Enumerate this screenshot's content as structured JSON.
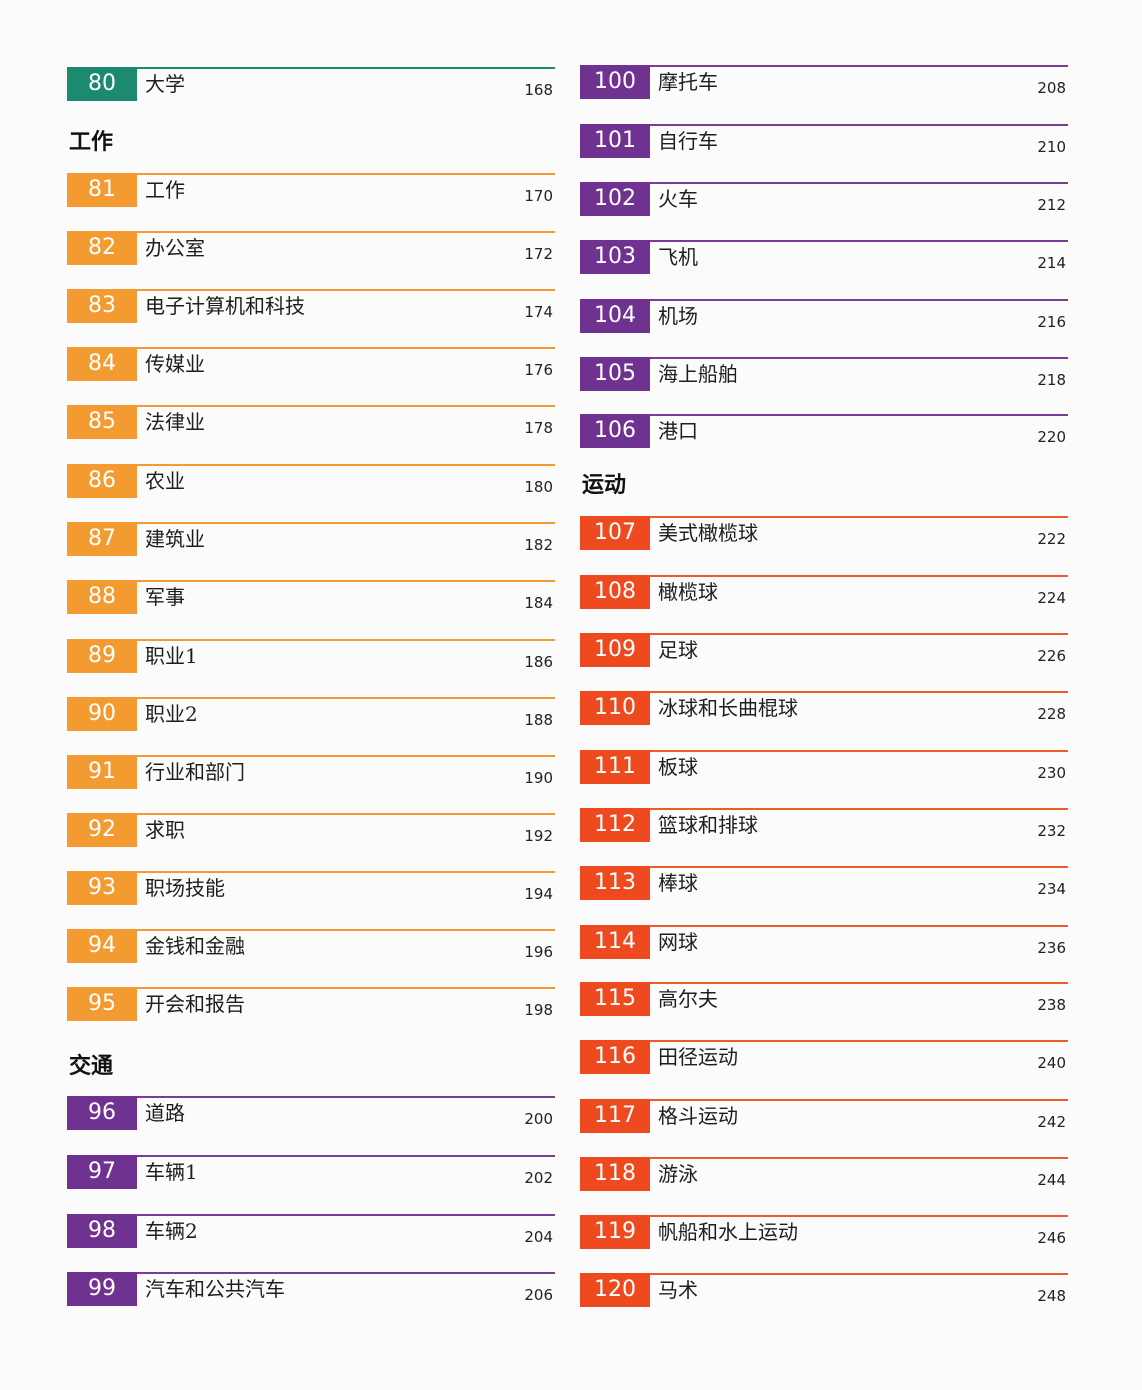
{
  "colors": {
    "green": "#1b8a6e",
    "orange": "#f39b30",
    "purple": "#6f3290",
    "red": "#ef4a1f"
  },
  "left": {
    "entry_80": {
      "num": "80",
      "title": "大学",
      "page": "168"
    },
    "section_work": "工作",
    "work": [
      {
        "num": "81",
        "title": "工作",
        "page": "170"
      },
      {
        "num": "82",
        "title": "办公室",
        "page": "172"
      },
      {
        "num": "83",
        "title": "电子计算机和科技",
        "page": "174"
      },
      {
        "num": "84",
        "title": "传媒业",
        "page": "176"
      },
      {
        "num": "85",
        "title": "法律业",
        "page": "178"
      },
      {
        "num": "86",
        "title": "农业",
        "page": "180"
      },
      {
        "num": "87",
        "title": "建筑业",
        "page": "182"
      },
      {
        "num": "88",
        "title": "军事",
        "page": "184"
      },
      {
        "num": "89",
        "title": "职业1",
        "page": "186"
      },
      {
        "num": "90",
        "title": "职业2",
        "page": "188"
      },
      {
        "num": "91",
        "title": "行业和部门",
        "page": "190"
      },
      {
        "num": "92",
        "title": "求职",
        "page": "192"
      },
      {
        "num": "93",
        "title": "职场技能",
        "page": "194"
      },
      {
        "num": "94",
        "title": "金钱和金融",
        "page": "196"
      },
      {
        "num": "95",
        "title": "开会和报告",
        "page": "198"
      }
    ],
    "section_transport": "交通",
    "transport": [
      {
        "num": "96",
        "title": "道路",
        "page": "200"
      },
      {
        "num": "97",
        "title": "车辆1",
        "page": "202"
      },
      {
        "num": "98",
        "title": "车辆2",
        "page": "204"
      },
      {
        "num": "99",
        "title": "汽车和公共汽车",
        "page": "206"
      }
    ]
  },
  "right": {
    "transport": [
      {
        "num": "100",
        "title": "摩托车",
        "page": "208"
      },
      {
        "num": "101",
        "title": "自行车",
        "page": "210"
      },
      {
        "num": "102",
        "title": "火车",
        "page": "212"
      },
      {
        "num": "103",
        "title": "飞机",
        "page": "214"
      },
      {
        "num": "104",
        "title": "机场",
        "page": "216"
      },
      {
        "num": "105",
        "title": "海上船舶",
        "page": "218"
      },
      {
        "num": "106",
        "title": "港口",
        "page": "220"
      }
    ],
    "section_sports": "运动",
    "sports": [
      {
        "num": "107",
        "title": "美式橄榄球",
        "page": "222"
      },
      {
        "num": "108",
        "title": "橄榄球",
        "page": "224"
      },
      {
        "num": "109",
        "title": "足球",
        "page": "226"
      },
      {
        "num": "110",
        "title": "冰球和长曲棍球",
        "page": "228"
      },
      {
        "num": "111",
        "title": "板球",
        "page": "230"
      },
      {
        "num": "112",
        "title": "篮球和排球",
        "page": "232"
      },
      {
        "num": "113",
        "title": "棒球",
        "page": "234"
      },
      {
        "num": "114",
        "title": "网球",
        "page": "236"
      },
      {
        "num": "115",
        "title": "高尔夫",
        "page": "238"
      },
      {
        "num": "116",
        "title": "田径运动",
        "page": "240"
      },
      {
        "num": "117",
        "title": "格斗运动",
        "page": "242"
      },
      {
        "num": "118",
        "title": "游泳",
        "page": "244"
      },
      {
        "num": "119",
        "title": "帆船和水上运动",
        "page": "246"
      },
      {
        "num": "120",
        "title": "马术",
        "page": "248"
      }
    ]
  }
}
